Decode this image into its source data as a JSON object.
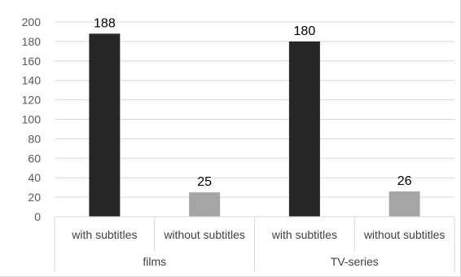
{
  "chart_data": {
    "type": "bar",
    "title": "",
    "xlabel": "",
    "ylabel": "",
    "ylim": [
      0,
      200
    ],
    "y_ticks": [
      0,
      20,
      40,
      60,
      80,
      100,
      120,
      140,
      160,
      180,
      200
    ],
    "grid": true,
    "legend": "none",
    "groups": [
      {
        "label": "films",
        "bars": [
          {
            "category": "with subtitles",
            "value": 188,
            "data_label": "188",
            "color": "#262626"
          },
          {
            "category": "without subtitles",
            "value": 25,
            "data_label": "25",
            "color": "#a6a6a6"
          }
        ]
      },
      {
        "label": "TV-series",
        "bars": [
          {
            "category": "with subtitles",
            "value": 180,
            "data_label": "180",
            "color": "#262626"
          },
          {
            "category": "without subtitles",
            "value": 26,
            "data_label": "26",
            "color": "#a6a6a6"
          }
        ]
      }
    ],
    "colors": {
      "gridline": "#d9d9d9",
      "axis_text": "#595959",
      "category_text": "#404040"
    }
  }
}
